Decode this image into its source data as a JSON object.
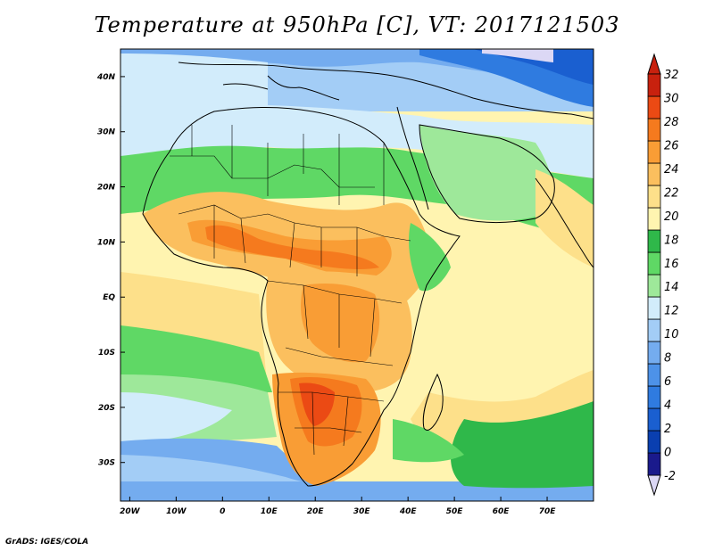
{
  "title": "Temperature at 950hPa [C], VT: 2017121503",
  "footer": "GrADS: IGES/COLA",
  "map": {
    "lon_range": [
      -22,
      80
    ],
    "lat_range": [
      -37,
      45
    ],
    "lon_ticks": [
      {
        "value": -20,
        "label": "20W"
      },
      {
        "value": -10,
        "label": "10W"
      },
      {
        "value": 0,
        "label": "0"
      },
      {
        "value": 10,
        "label": "10E"
      },
      {
        "value": 20,
        "label": "20E"
      },
      {
        "value": 30,
        "label": "30E"
      },
      {
        "value": 40,
        "label": "40E"
      },
      {
        "value": 50,
        "label": "50E"
      },
      {
        "value": 60,
        "label": "60E"
      },
      {
        "value": 70,
        "label": "70E"
      }
    ],
    "lat_ticks": [
      {
        "value": 40,
        "label": "40N"
      },
      {
        "value": 30,
        "label": "30N"
      },
      {
        "value": 20,
        "label": "20N"
      },
      {
        "value": 10,
        "label": "10N"
      },
      {
        "value": 0,
        "label": "EQ"
      },
      {
        "value": -10,
        "label": "10S"
      },
      {
        "value": -20,
        "label": "20S"
      },
      {
        "value": -30,
        "label": "30S"
      }
    ]
  },
  "colorbar": {
    "labels": [
      "-2",
      "0",
      "2",
      "4",
      "6",
      "8",
      "10",
      "12",
      "14",
      "16",
      "18",
      "20",
      "22",
      "24",
      "26",
      "28",
      "30",
      "32"
    ],
    "colors": [
      "#1a1a8c",
      "#0a3fb0",
      "#1a5fd0",
      "#2f7be0",
      "#4d92e8",
      "#74acef",
      "#a3cdf6",
      "#d2ecfb",
      "#9ee89a",
      "#5fd865",
      "#2fb84a",
      "#fff4b0",
      "#fde08a",
      "#fbbf5e",
      "#f99d35",
      "#f57a1e",
      "#eb4a14",
      "#c8210e"
    ],
    "below_color": "#dcd8f5"
  }
}
